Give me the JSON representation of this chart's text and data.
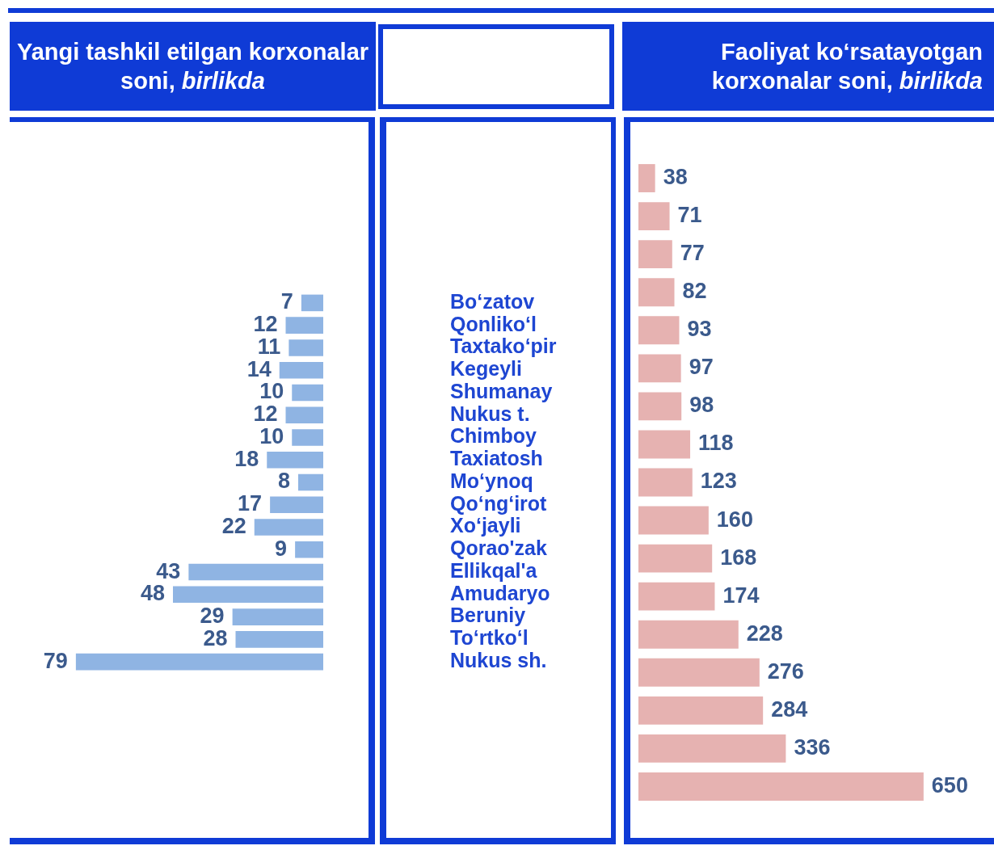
{
  "chart_data": [
    {
      "type": "bar",
      "orientation": "horizontal",
      "title": "Yangi tashkil etilgan korxonalar soni, birlikda",
      "categories": [
        "Bo‘zatov",
        "Qonliko‘l",
        "Taxtako‘pir",
        "Kegeyli",
        "Shumanay",
        "Nukus t.",
        "Chimboy",
        "Taxiatosh",
        "Mo‘ynoq",
        "Qo‘ng‘irot",
        "Xo‘jayli",
        "Qorao'zak",
        "Ellikqal'a",
        "Amudaryo",
        "Beruniy",
        "To‘rtko‘l",
        "Nukus sh."
      ],
      "values": [
        7,
        12,
        11,
        14,
        10,
        12,
        10,
        18,
        8,
        17,
        22,
        9,
        43,
        48,
        29,
        28,
        79
      ],
      "color": "#8fb4e3",
      "data_labels": true,
      "tick_labels": "y"
    },
    {
      "type": "bar",
      "orientation": "horizontal",
      "title": "Faoliyat ko‘rsatayotgan korxonalar soni, birlikda",
      "categories": [
        null,
        null,
        null,
        null,
        null,
        null,
        null,
        null,
        null,
        null,
        null,
        null,
        null,
        null,
        null,
        null,
        null
      ],
      "values": [
        38,
        71,
        77,
        82,
        93,
        97,
        98,
        118,
        123,
        160,
        168,
        174,
        228,
        276,
        284,
        336,
        650
      ],
      "color": "#e6b2b1",
      "data_labels": true,
      "tick_labels": false
    }
  ]
}
